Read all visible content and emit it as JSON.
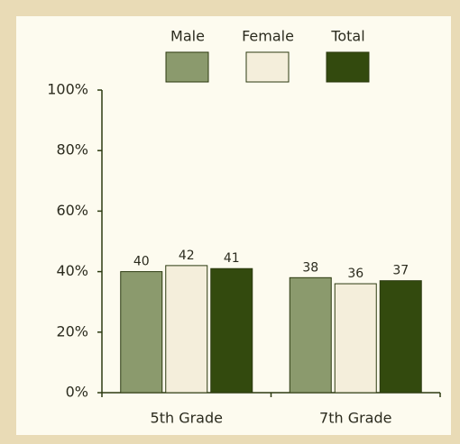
{
  "chart_data": {
    "type": "bar",
    "categories": [
      "5th Grade",
      "7th Grade"
    ],
    "series": [
      {
        "name": "Male",
        "color": "#8b9a6d",
        "values": [
          40,
          38
        ]
      },
      {
        "name": "Female",
        "color": "#f4eedb",
        "values": [
          42,
          36
        ]
      },
      {
        "name": "Total",
        "color": "#334a0e",
        "values": [
          41,
          37
        ]
      }
    ],
    "ylim": [
      0,
      100
    ],
    "yticks": [
      {
        "value": 0,
        "label": "0%"
      },
      {
        "value": 20,
        "label": "20%"
      },
      {
        "value": 40,
        "label": "40%"
      },
      {
        "value": 60,
        "label": "60%"
      },
      {
        "value": 80,
        "label": "80%"
      },
      {
        "value": 100,
        "label": "100%"
      }
    ],
    "legend": "top"
  }
}
